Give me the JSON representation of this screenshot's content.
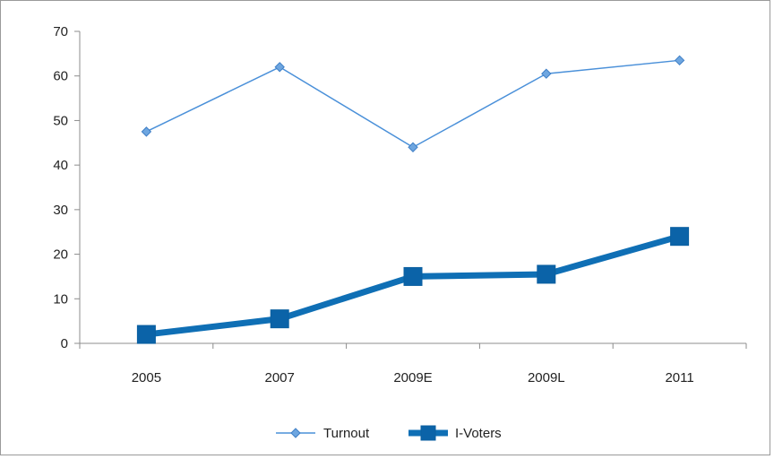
{
  "chart_data": {
    "type": "line",
    "categories": [
      "2005",
      "2007",
      "2009E",
      "2009L",
      "2011"
    ],
    "series": [
      {
        "name": "Turnout",
        "values": [
          47.5,
          62,
          44,
          60.5,
          63.5
        ],
        "color": "#4a90d9",
        "marker": "diamond"
      },
      {
        "name": "I-Voters",
        "values": [
          2,
          5.5,
          15,
          15.5,
          24
        ],
        "color": "#0f6fb5",
        "marker": "square"
      }
    ],
    "ylim": [
      0,
      70
    ],
    "yticks": [
      0,
      10,
      20,
      30,
      40,
      50,
      60,
      70
    ],
    "grid": false,
    "legend": "bottom"
  }
}
